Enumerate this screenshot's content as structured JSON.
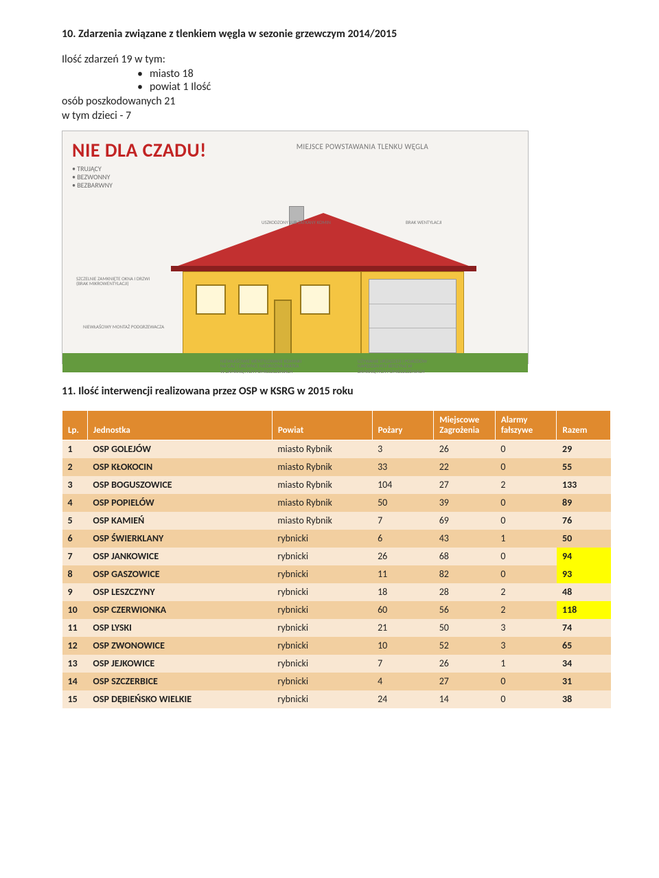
{
  "section10": {
    "title": "10.   Zdarzenia związane z tlenkiem węgla w sezonie grzewczym 2014/2015",
    "line1": "Ilość zdarzeń 19 w tym:",
    "bullets": [
      "miasto 18",
      "powiat 1  Ilość"
    ],
    "line2": "osób poszkodowanych 21",
    "line3": "w tym dzieci - 7"
  },
  "infographic": {
    "headline": "NIE DLA CZADU!",
    "props": [
      "• TRUJĄCY",
      "• BEZWONNY",
      "• BEZBARWNY"
    ],
    "right_title": "MIEJSCE POWSTAWANIA TLENKU WĘGLA",
    "labels": {
      "tl1": "BRAK WENTYLACJI",
      "tl2": "SZCZELNIE ZAMKNIĘTE OKNA I DRZWI (BRAK MIKROWENTYLACJI)",
      "tl3": "NIEWŁAŚCIWY MONTAŻ PODGRZEWACZA",
      "tl4": "NIEWŁAŚCIWIE WENTYLOWANE KOMINKI NA GAZ I DREWNO, NIEDROŻNA KRATKA W ZAMKNIĘTYCH POMIESZCZENIACH",
      "tl5": "UŻYWANIE URZĄDZEŃ I POJAZDÓW NAPĘDZANYCH BENZYNĄ W ZAMKNIĘTYCH POMIESZCZENIACH",
      "tl6": "USZKODZONY LUB ZATKANY KOMIN"
    }
  },
  "section11": {
    "title": "11.   Ilość interwencji realizowana przez OSP w KSRG w 2015 roku"
  },
  "table": {
    "columns": [
      "Lp.",
      "Jednostka",
      "Powiat",
      "Pożary",
      "Miejscowe Zagrożenia",
      "Alarmy fałszywe",
      "Razem"
    ],
    "header_bg": "#e08a2e",
    "row_colors": {
      "light": "#f9e7d2",
      "mid": "#f2cfa0"
    },
    "highlight_color": "#ffff00",
    "rows": [
      {
        "lp": "1",
        "unit": "OSP GOLEJÓW",
        "powiat": "miasto Rybnik",
        "p": "3",
        "mz": "26",
        "af": "0",
        "r": "29",
        "hl": false,
        "shade": "light"
      },
      {
        "lp": "2",
        "unit": "OSP KŁOKOCIN",
        "powiat": "miasto Rybnik",
        "p": "33",
        "mz": "22",
        "af": "0",
        "r": "55",
        "hl": false,
        "shade": "mid"
      },
      {
        "lp": "3",
        "unit": "OSP BOGUSZOWICE",
        "powiat": "miasto Rybnik",
        "p": "104",
        "mz": "27",
        "af": "2",
        "r": "133",
        "hl": false,
        "shade": "light"
      },
      {
        "lp": "4",
        "unit": "OSP POPIELÓW",
        "powiat": "miasto Rybnik",
        "p": "50",
        "mz": "39",
        "af": "0",
        "r": "89",
        "hl": false,
        "shade": "mid"
      },
      {
        "lp": "5",
        "unit": "OSP KAMIEŃ",
        "powiat": "miasto Rybnik",
        "p": "7",
        "mz": "69",
        "af": "0",
        "r": "76",
        "hl": false,
        "shade": "light"
      },
      {
        "lp": "6",
        "unit": "OSP ŚWIERKLANY",
        "powiat": "rybnicki",
        "p": "6",
        "mz": "43",
        "af": "1",
        "r": "50",
        "hl": false,
        "shade": "mid"
      },
      {
        "lp": "7",
        "unit": "OSP JANKOWICE",
        "powiat": "rybnicki",
        "p": "26",
        "mz": "68",
        "af": "0",
        "r": "94",
        "hl": true,
        "shade": "light"
      },
      {
        "lp": "8",
        "unit": "OSP GASZOWICE",
        "powiat": "rybnicki",
        "p": "11",
        "mz": "82",
        "af": "0",
        "r": "93",
        "hl": true,
        "shade": "mid"
      },
      {
        "lp": "9",
        "unit": "OSP LESZCZYNY",
        "powiat": "rybnicki",
        "p": "18",
        "mz": "28",
        "af": "2",
        "r": "48",
        "hl": false,
        "shade": "light"
      },
      {
        "lp": "10",
        "unit": "OSP CZERWIONKA",
        "powiat": "rybnicki",
        "p": "60",
        "mz": "56",
        "af": "2",
        "r": "118",
        "hl": true,
        "shade": "mid"
      },
      {
        "lp": "11",
        "unit": "OSP LYSKI",
        "powiat": "rybnicki",
        "p": "21",
        "mz": "50",
        "af": "3",
        "r": "74",
        "hl": false,
        "shade": "light"
      },
      {
        "lp": "12",
        "unit": "OSP ZWONOWICE",
        "powiat": "rybnicki",
        "p": "10",
        "mz": "52",
        "af": "3",
        "r": "65",
        "hl": false,
        "shade": "mid"
      },
      {
        "lp": "13",
        "unit": "OSP JEJKOWICE",
        "powiat": "rybnicki",
        "p": "7",
        "mz": "26",
        "af": "1",
        "r": "34",
        "hl": false,
        "shade": "light"
      },
      {
        "lp": "14",
        "unit": "OSP SZCZERBICE",
        "powiat": "rybnicki",
        "p": "4",
        "mz": "27",
        "af": "0",
        "r": "31",
        "hl": false,
        "shade": "mid"
      },
      {
        "lp": "15",
        "unit": "OSP DĘBIEŃSKO WIELKIE",
        "powiat": "rybnicki",
        "p": "24",
        "mz": "14",
        "af": "0",
        "r": "38",
        "hl": false,
        "shade": "light"
      }
    ]
  }
}
